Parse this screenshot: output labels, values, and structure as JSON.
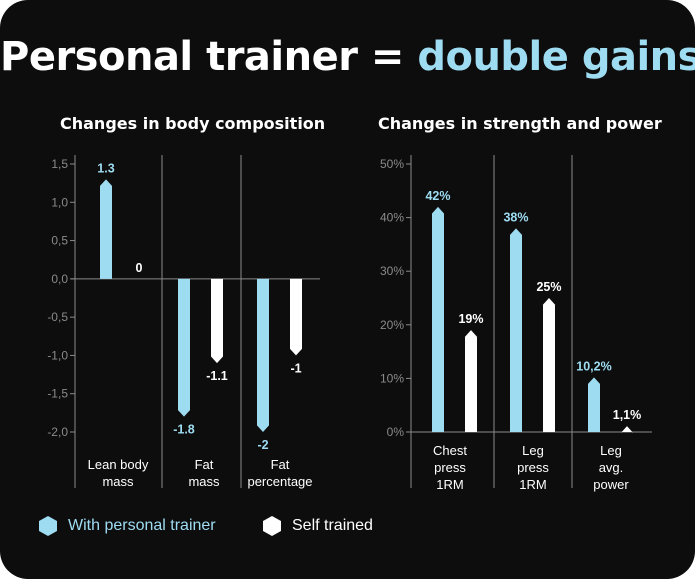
{
  "title": {
    "prefix": "Personal trainer = ",
    "highlight": "double gains"
  },
  "colors": {
    "trainer": "#9edcf2",
    "self": "#ffffff",
    "axis": "#8a8a8a",
    "background": "#0d0d0d"
  },
  "legend": [
    {
      "label": "With personal trainer",
      "color": "#9edcf2",
      "icon": "hexagon-icon"
    },
    {
      "label": "Self trained",
      "color": "#ffffff",
      "icon": "hexagon-icon"
    }
  ],
  "chart_data": [
    {
      "type": "bar",
      "title": "Changes in body composition",
      "categories": [
        "Lean body mass",
        "Fat mass",
        "Fat percentage"
      ],
      "category_lines": [
        [
          "Lean body",
          "mass"
        ],
        [
          "Fat",
          "mass"
        ],
        [
          "Fat",
          "percentage"
        ]
      ],
      "series": [
        {
          "name": "With personal trainer",
          "values": [
            1.3,
            -1.8,
            -2
          ],
          "labels": [
            "1.3",
            "-1.8",
            "-2"
          ]
        },
        {
          "name": "Self trained",
          "values": [
            0,
            -1.1,
            -1
          ],
          "labels": [
            "0",
            "-1.1",
            "-1"
          ]
        }
      ],
      "ylim": [
        -2.0,
        1.5
      ],
      "yticks": [
        1.5,
        1.0,
        0.5,
        0.0,
        -0.5,
        -1.0,
        -1.5,
        -2.0
      ],
      "ytick_labels": [
        "1,5",
        "1,0",
        "0,5",
        "0,0",
        "-0,5",
        "-1,0",
        "-1,5",
        "-2,0"
      ],
      "grid": false,
      "legend_position": "bottom-left"
    },
    {
      "type": "bar",
      "title": "Changes in strength and power",
      "categories": [
        "Chest press 1RM",
        "Leg press 1RM",
        "Leg avg. power"
      ],
      "category_lines": [
        [
          "Chest",
          "press",
          "1RM"
        ],
        [
          "Leg",
          "press",
          "1RM"
        ],
        [
          "Leg",
          "avg.",
          "power"
        ]
      ],
      "series": [
        {
          "name": "With personal trainer",
          "values": [
            42,
            38,
            10.2
          ],
          "labels": [
            "42%",
            "38%",
            "10,2%"
          ]
        },
        {
          "name": "Self trained",
          "values": [
            19,
            25,
            1.1
          ],
          "labels": [
            "19%",
            "25%",
            "1,1%"
          ]
        }
      ],
      "ylim": [
        0,
        50
      ],
      "yticks": [
        50,
        40,
        30,
        20,
        10,
        0
      ],
      "ytick_labels": [
        "50%",
        "40%",
        "30%",
        "20%",
        "10%",
        "0%"
      ],
      "grid": false,
      "legend_position": "bottom-left"
    }
  ]
}
